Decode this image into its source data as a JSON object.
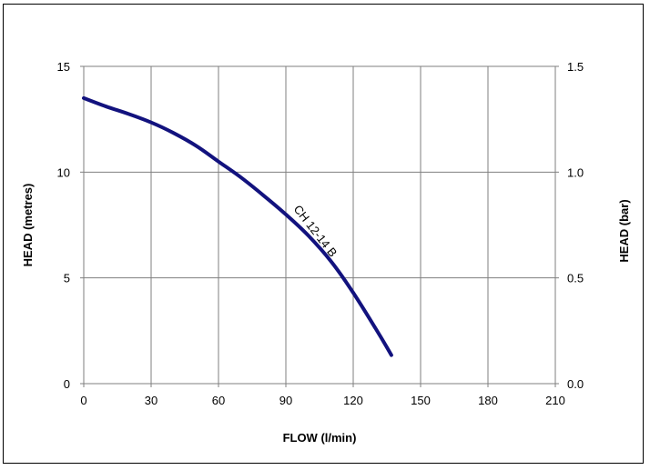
{
  "chart_data": {
    "type": "line",
    "xlabel": "FLOW (l/min)",
    "ylabel_left": "HEAD (metres)",
    "ylabel_right": "HEAD (bar)",
    "xlim": [
      0,
      210
    ],
    "ylim": [
      0,
      15
    ],
    "ylim_right": [
      0.0,
      1.5
    ],
    "x_ticks": [
      "0",
      "30",
      "60",
      "90",
      "120",
      "150",
      "180",
      "210"
    ],
    "y_ticks_left": [
      "0",
      "5",
      "10",
      "15"
    ],
    "y_ticks_right": [
      "0.0",
      "0.5",
      "1.0",
      "1.5"
    ],
    "grid": true,
    "line_color": "#12127e",
    "series": [
      {
        "name": "CH 12-14 B",
        "x": [
          0,
          10,
          20,
          30,
          40,
          50,
          60,
          70,
          80,
          90,
          100,
          110,
          120,
          130,
          137
        ],
        "y": [
          13.5,
          13.1,
          12.75,
          12.35,
          11.85,
          11.25,
          10.5,
          9.75,
          8.9,
          8.0,
          7.0,
          5.8,
          4.3,
          2.6,
          1.35
        ]
      }
    ]
  }
}
